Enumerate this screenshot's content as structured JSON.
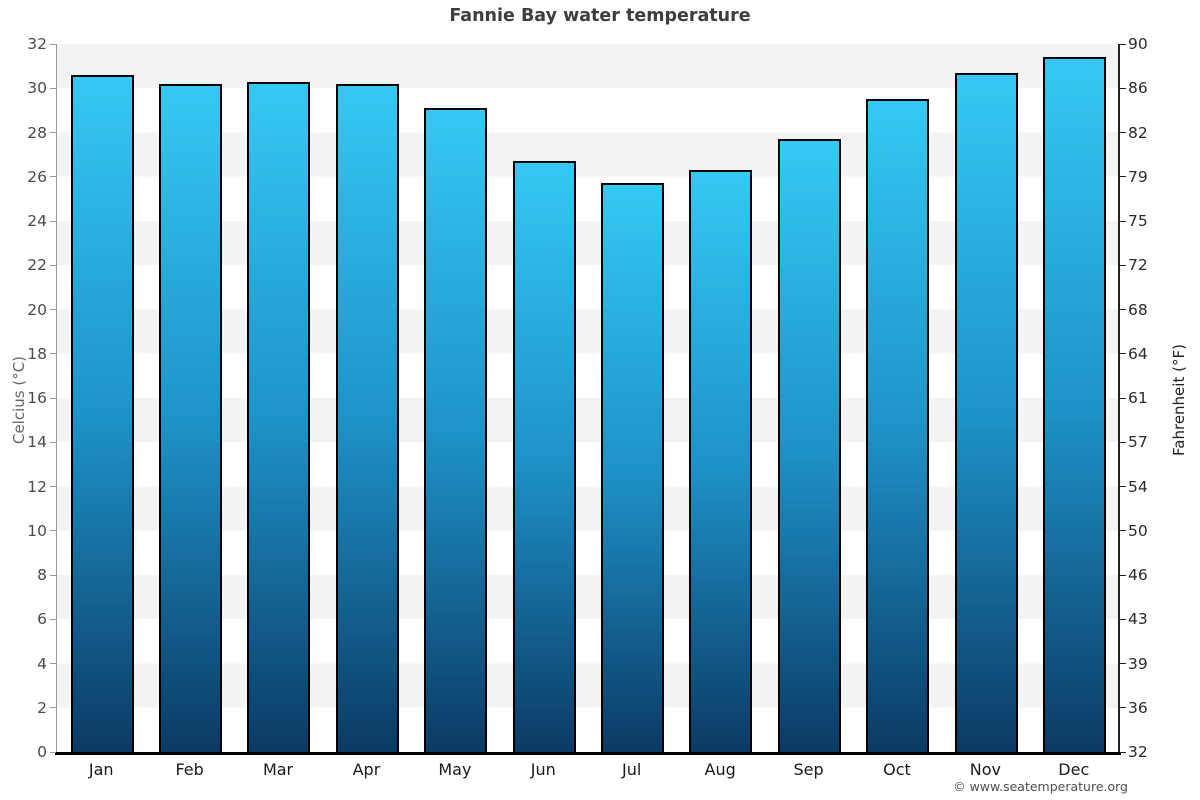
{
  "chart_data": {
    "type": "bar",
    "title": "Fannie Bay water temperature",
    "categories": [
      "Jan",
      "Feb",
      "Mar",
      "Apr",
      "May",
      "Jun",
      "Jul",
      "Aug",
      "Sep",
      "Oct",
      "Nov",
      "Dec"
    ],
    "values": [
      30.6,
      30.2,
      30.3,
      30.2,
      29.1,
      26.7,
      25.7,
      26.3,
      27.7,
      29.5,
      30.7,
      31.4
    ],
    "ylabel": "Celcius (°C)",
    "ylabel_right": "Fahrenheit (°F)",
    "xlabel": "",
    "ylim": [
      0,
      32
    ],
    "yticks_celsius": [
      32,
      30,
      28,
      26,
      24,
      22,
      20,
      18,
      16,
      14,
      12,
      10,
      8,
      6,
      4,
      2,
      0
    ],
    "yticks_fahrenheit": [
      90,
      86,
      82,
      79,
      75,
      72,
      68,
      64,
      61,
      57,
      54,
      50,
      46,
      43,
      39,
      36,
      32
    ],
    "legend_position": "none",
    "grid": "alternating horizontal 2-degree bands"
  },
  "watermark": {
    "text": "© www.seatemperature.org"
  },
  "colors": {
    "bar_gradient_top": "#35c8f3",
    "bar_gradient_mid": "#1e93c9",
    "bar_gradient_bottom": "#0b3a64",
    "bar_border": "#000000",
    "band_gray": "#f3f3f3",
    "band_white": "#ffffff",
    "axis_left_line": "#9a9a9a",
    "axis_right_line": "#222222",
    "axis_bottom_line": "#000000",
    "title_text": "#3d3d3d",
    "tick_text_left": "#4a4a4a",
    "tick_text_right": "#2a2a2a"
  }
}
